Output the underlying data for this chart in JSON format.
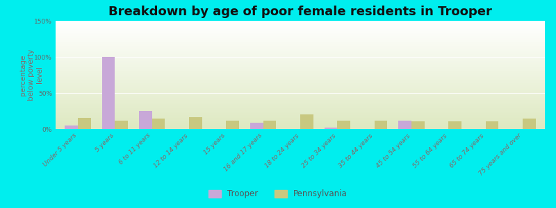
{
  "title": "Breakdown by age of poor female residents in Trooper",
  "ylabel": "percentage\nbelow poverty\nlevel",
  "categories": [
    "Under 5 years",
    "5 years",
    "6 to 11 years",
    "12 to 14 years",
    "15 years",
    "16 and 17 years",
    "18 to 24 years",
    "25 to 34 years",
    "35 to 44 years",
    "45 to 54 years",
    "55 to 64 years",
    "65 to 74 years",
    "75 years and over"
  ],
  "trooper_values": [
    5,
    100,
    25,
    0,
    0,
    9,
    0,
    2,
    0,
    12,
    0,
    0,
    0
  ],
  "pennsylvania_values": [
    15,
    12,
    14,
    16,
    12,
    12,
    20,
    12,
    12,
    11,
    11,
    11,
    14
  ],
  "trooper_color": "#c8a8d8",
  "pennsylvania_color": "#c8c880",
  "background_top": "#ffffff",
  "background_bottom": "#dde8c0",
  "outer_bg": "#00eeee",
  "ylim": [
    0,
    150
  ],
  "yticks": [
    0,
    50,
    100,
    150
  ],
  "ytick_labels": [
    "0%",
    "50%",
    "100%",
    "150%"
  ],
  "title_fontsize": 13,
  "axis_label_fontsize": 7.5,
  "tick_label_fontsize": 6.5,
  "legend_fontsize": 8.5,
  "bar_width": 0.35
}
